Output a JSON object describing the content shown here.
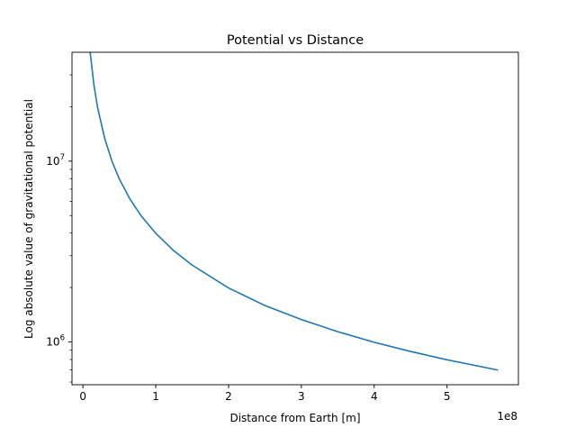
{
  "chart_data": {
    "type": "line",
    "title": "Potential vs Distance",
    "xlabel": "Distance from Earth [m]",
    "ylabel": "Log absolute value of gravitational potential",
    "x_offset_label": "1e8",
    "y_scale": "log",
    "x_scale": "linear",
    "xlim": [
      -15000000.0,
      598000000.0
    ],
    "ylim": [
      580000.0,
      40000000.0
    ],
    "grid": false,
    "x_ticks": [
      {
        "value": 0,
        "label": "0"
      },
      {
        "value": 100000000.0,
        "label": "1"
      },
      {
        "value": 200000000.0,
        "label": "2"
      },
      {
        "value": 300000000.0,
        "label": "3"
      },
      {
        "value": 400000000.0,
        "label": "4"
      },
      {
        "value": 500000000.0,
        "label": "5"
      }
    ],
    "y_major_ticks": [
      {
        "value": 1000000.0,
        "label_base": "10",
        "label_exp": "6"
      },
      {
        "value": 10000000.0,
        "label_base": "10",
        "label_exp": "7"
      }
    ],
    "y_minor_ticks": [
      600000.0,
      700000.0,
      800000.0,
      900000.0,
      2000000.0,
      3000000.0,
      4000000.0,
      5000000.0,
      6000000.0,
      7000000.0,
      8000000.0,
      9000000.0,
      20000000.0,
      30000000.0
    ],
    "series": [
      {
        "color": "#1f77b4",
        "points": [
          [
            10000000.0,
            39800000.0
          ],
          [
            15000000.0,
            26600000.0
          ],
          [
            20000000.0,
            19900000.0
          ],
          [
            30000000.0,
            13300000.0
          ],
          [
            40000000.0,
            9960000.0
          ],
          [
            50000000.0,
            7970000.0
          ],
          [
            65000000.0,
            6130000.0
          ],
          [
            80000000.0,
            4980000.0
          ],
          [
            100000000.0,
            3990000.0
          ],
          [
            125000000.0,
            3190000.0
          ],
          [
            150000000.0,
            2660000.0
          ],
          [
            200000000.0,
            1990000.0
          ],
          [
            250000000.0,
            1590000.0
          ],
          [
            300000000.0,
            1330000.0
          ],
          [
            350000000.0,
            1140000.0
          ],
          [
            400000000.0,
            996000.0
          ],
          [
            450000000.0,
            886000.0
          ],
          [
            500000000.0,
            797000.0
          ],
          [
            570000000.0,
            699000.0
          ]
        ]
      }
    ]
  }
}
